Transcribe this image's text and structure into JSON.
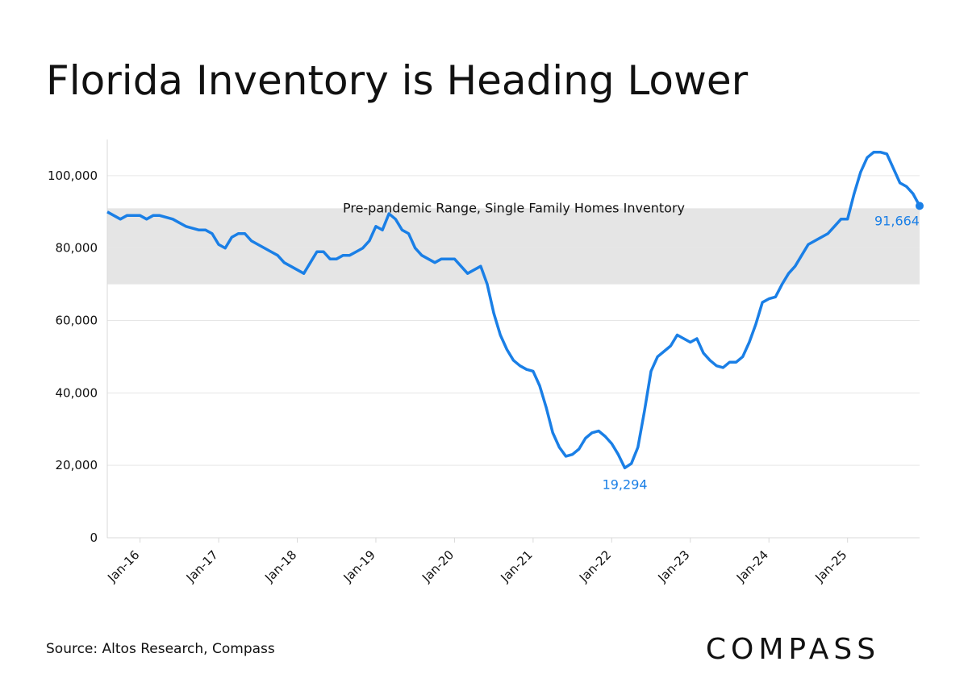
{
  "chart_data": {
    "type": "line",
    "title": "Florida Inventory is Heading Lower",
    "source": "Source: Altos Research, Compass",
    "logo": "COMPASS",
    "band": {
      "label": "Pre-pandemic Range, Single Family Homes Inventory",
      "from": 70000,
      "to": 91000,
      "color": "#e5e5e5"
    },
    "x": [
      "Aug-15",
      "Sep-15",
      "Oct-15",
      "Nov-15",
      "Dec-15",
      "Jan-16",
      "Feb-16",
      "Mar-16",
      "Apr-16",
      "May-16",
      "Jun-16",
      "Jul-16",
      "Aug-16",
      "Sep-16",
      "Oct-16",
      "Nov-16",
      "Dec-16",
      "Jan-17",
      "Feb-17",
      "Mar-17",
      "Apr-17",
      "May-17",
      "Jun-17",
      "Jul-17",
      "Aug-17",
      "Sep-17",
      "Oct-17",
      "Nov-17",
      "Dec-17",
      "Jan-18",
      "Feb-18",
      "Mar-18",
      "Apr-18",
      "May-18",
      "Jun-18",
      "Jul-18",
      "Aug-18",
      "Sep-18",
      "Oct-18",
      "Nov-18",
      "Dec-18",
      "Jan-19",
      "Feb-19",
      "Mar-19",
      "Apr-19",
      "May-19",
      "Jun-19",
      "Jul-19",
      "Aug-19",
      "Sep-19",
      "Oct-19",
      "Nov-19",
      "Dec-19",
      "Jan-20",
      "Feb-20",
      "Mar-20",
      "Apr-20",
      "May-20",
      "Jun-20",
      "Jul-20",
      "Aug-20",
      "Sep-20",
      "Oct-20",
      "Nov-20",
      "Dec-20",
      "Jan-21",
      "Feb-21",
      "Mar-21",
      "Apr-21",
      "May-21",
      "Jun-21",
      "Jul-21",
      "Aug-21",
      "Sep-21",
      "Oct-21",
      "Nov-21",
      "Dec-21",
      "Jan-22",
      "Feb-22",
      "Mar-22",
      "Apr-22",
      "May-22",
      "Jun-22",
      "Jul-22",
      "Aug-22",
      "Sep-22",
      "Oct-22",
      "Nov-22",
      "Dec-22",
      "Jan-23",
      "Feb-23",
      "Mar-23",
      "Apr-23",
      "May-23",
      "Jun-23",
      "Jul-23",
      "Aug-23",
      "Sep-23",
      "Oct-23",
      "Nov-23",
      "Dec-23",
      "Jan-24",
      "Feb-24",
      "Mar-24",
      "Apr-24",
      "May-24",
      "Jun-24",
      "Jul-24",
      "Aug-24",
      "Sep-24",
      "Oct-24",
      "Nov-24",
      "Dec-24",
      "Jan-25",
      "Feb-25",
      "Mar-25",
      "Apr-25",
      "May-25",
      "Jun-25",
      "Jul-25",
      "Aug-25",
      "Sep-25",
      "Oct-25",
      "Nov-25",
      "Dec-25"
    ],
    "series": [
      {
        "color": "#1a7fe6",
        "values": [
          90000,
          89000,
          88000,
          89000,
          89000,
          89000,
          88000,
          89000,
          89000,
          88500,
          88000,
          87000,
          86000,
          85500,
          85000,
          85000,
          84000,
          81000,
          80000,
          83000,
          84000,
          84000,
          82000,
          81000,
          80000,
          79000,
          78000,
          76000,
          75000,
          74000,
          73000,
          76000,
          79000,
          79000,
          77000,
          77000,
          78000,
          78000,
          79000,
          80000,
          82000,
          86000,
          85000,
          89500,
          88000,
          85000,
          84000,
          80000,
          78000,
          77000,
          76000,
          77000,
          77000,
          77000,
          75000,
          73000,
          74000,
          75000,
          70000,
          62000,
          56000,
          52000,
          49000,
          47500,
          46500,
          46000,
          42000,
          36000,
          29000,
          25000,
          22500,
          23000,
          24500,
          27500,
          29000,
          29500,
          28000,
          26000,
          23000,
          19294,
          20500,
          25000,
          35000,
          46000,
          50000,
          51500,
          53000,
          56000,
          55000,
          54000,
          55000,
          51000,
          49000,
          47500,
          47000,
          48500,
          48500,
          50000,
          54000,
          59000,
          65000,
          66000,
          66500,
          70000,
          73000,
          75000,
          78000,
          81000,
          82000,
          83000,
          84000,
          86000,
          88000,
          88000,
          95000,
          101000,
          105000,
          106500,
          106500,
          106000,
          102000,
          98000,
          97000,
          95000,
          91664
        ],
        "value_labels": [
          null,
          null,
          null,
          null,
          null,
          null,
          null,
          null,
          null,
          null,
          null,
          null,
          null,
          null,
          null,
          null,
          null,
          null,
          null,
          null,
          null,
          null,
          null,
          null,
          null,
          null,
          null,
          null,
          null,
          null,
          null,
          null,
          null,
          null,
          null,
          null,
          null,
          null,
          null,
          null,
          null,
          null,
          null,
          null,
          null,
          null,
          null,
          null,
          null,
          null,
          null,
          null,
          null,
          null,
          null,
          null,
          null,
          null,
          null,
          null,
          null,
          null,
          null,
          null,
          null,
          null,
          null,
          null,
          null,
          null,
          null,
          null,
          null,
          null,
          null,
          null,
          null,
          null,
          null,
          "19,294",
          null,
          null,
          null,
          null,
          null,
          null,
          null,
          null,
          null,
          null,
          null,
          null,
          null,
          null,
          null,
          null,
          null,
          null,
          null,
          null,
          null,
          null,
          null,
          null,
          null,
          null,
          null,
          null,
          null,
          null,
          null,
          null,
          null,
          null,
          null,
          null,
          null,
          null,
          null,
          null,
          null,
          null,
          null,
          null,
          "91,664"
        ]
      }
    ],
    "xticks": [
      "Jan-16",
      "Jan-17",
      "Jan-18",
      "Jan-19",
      "Jan-20",
      "Jan-21",
      "Jan-22",
      "Jan-23",
      "Jan-24",
      "Jan-25"
    ],
    "ylim": [
      0,
      110000
    ],
    "yticks": [
      0,
      {
        "value": 20000,
        "label": "20,000"
      },
      {
        "value": 40000,
        "label": "40,000"
      },
      {
        "value": 60000,
        "label": "60,000"
      },
      {
        "value": 80000,
        "label": "80,000"
      },
      {
        "value": 100000,
        "label": "100,000"
      }
    ],
    "grid": true
  }
}
